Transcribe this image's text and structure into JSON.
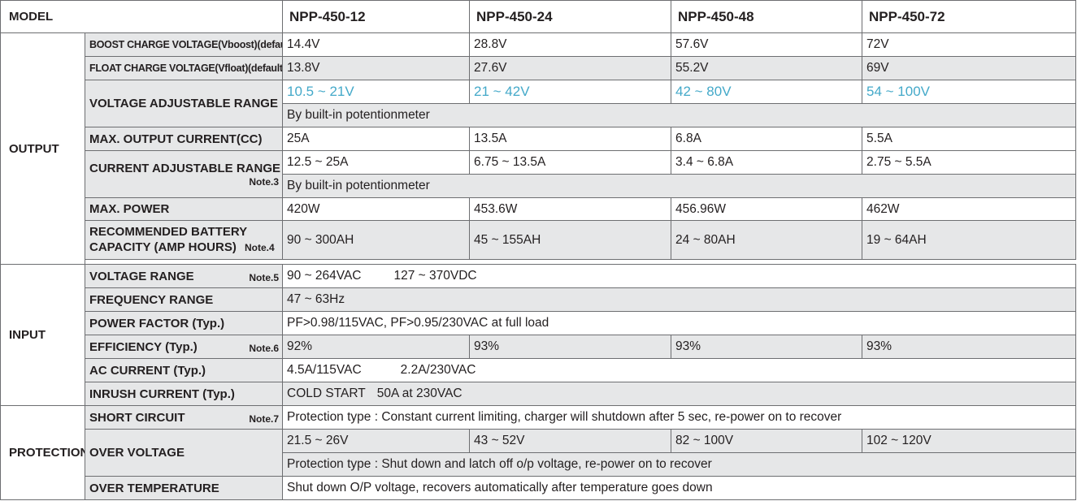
{
  "model_label": "MODEL",
  "models": [
    "NPP-450-12",
    "NPP-450-24",
    "NPP-450-48",
    "NPP-450-72"
  ],
  "output": {
    "group": "OUTPUT",
    "boost": {
      "label": "BOOST CHARGE VOLTAGE(Vboost)(default)",
      "values": [
        "14.4V",
        "28.8V",
        "57.6V",
        "72V"
      ]
    },
    "float": {
      "label": "FLOAT CHARGE VOLTAGE(Vfloat)(default)",
      "values": [
        "13.8V",
        "27.6V",
        "55.2V",
        "69V"
      ]
    },
    "vadj": {
      "label": "VOLTAGE ADJUSTABLE RANGE",
      "values": [
        "10.5 ~ 21V",
        "21 ~ 42V",
        "42 ~ 80V",
        "54 ~ 100V"
      ],
      "method": "By built-in potentionmeter",
      "value_color": "#44a9c9"
    },
    "maxcur": {
      "label": "MAX. OUTPUT CURRENT(CC)",
      "values": [
        "25A",
        "13.5A",
        "6.8A",
        "5.5A"
      ]
    },
    "cadj": {
      "label": "CURRENT ADJUSTABLE RANGE",
      "note": "Note.3",
      "values": [
        "12.5 ~ 25A",
        "6.75 ~ 13.5A",
        "3.4 ~ 6.8A",
        "2.75 ~ 5.5A"
      ],
      "method": "By built-in potentionmeter"
    },
    "maxpow": {
      "label": "MAX. POWER",
      "values": [
        "420W",
        "453.6W",
        "456.96W",
        "462W"
      ]
    },
    "batt": {
      "label_line1": "RECOMMENDED BATTERY",
      "label_line2": "CAPACITY (AMP HOURS)",
      "note": "Note.4",
      "values": [
        "90 ~ 300AH",
        "45 ~ 155AH",
        "24 ~ 80AH",
        "19 ~ 64AH"
      ]
    }
  },
  "input": {
    "group": "INPUT",
    "vrange": {
      "label": "VOLTAGE RANGE",
      "note": "Note.5",
      "value_ac": "90 ~ 264VAC",
      "value_dc": "127 ~ 370VDC"
    },
    "freq": {
      "label": "FREQUENCY RANGE",
      "value": "47 ~ 63Hz"
    },
    "pf": {
      "label": "POWER FACTOR (Typ.)",
      "value": "PF>0.98/115VAC, PF>0.95/230VAC at full load"
    },
    "eff": {
      "label": "EFFICIENCY (Typ.)",
      "note": "Note.6",
      "values": [
        "92%",
        "93%",
        "93%",
        "93%"
      ]
    },
    "accur": {
      "label": "AC CURRENT (Typ.)",
      "value_115": "4.5A/115VAC",
      "value_230": "2.2A/230VAC"
    },
    "inrush": {
      "label": "INRUSH CURRENT (Typ.)",
      "value_a": "COLD START",
      "value_b": "50A at 230VAC"
    }
  },
  "protection": {
    "group": "PROTECTION",
    "short": {
      "label": "SHORT CIRCUIT",
      "note": "Note.7",
      "value": "Protection type : Constant current limiting, charger will shutdown after 5 sec, re-power on to recover"
    },
    "ovp": {
      "label": "OVER VOLTAGE",
      "values": [
        "21.5 ~ 26V",
        "43 ~ 52V",
        "82 ~ 100V",
        "102 ~ 120V"
      ],
      "type": "Protection type : Shut down and latch off o/p voltage, re-power on to recover"
    },
    "otp": {
      "label": "OVER TEMPERATURE",
      "value": "Shut down O/P voltage, recovers automatically after temperature goes down"
    }
  }
}
